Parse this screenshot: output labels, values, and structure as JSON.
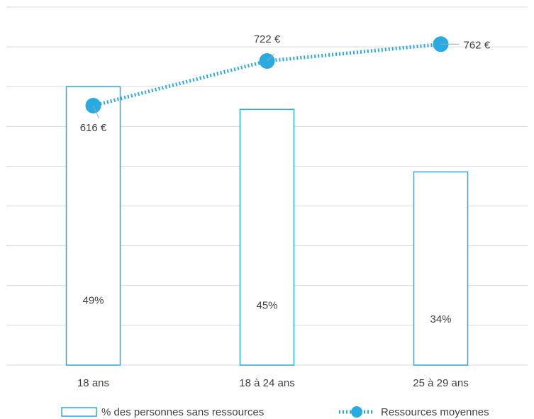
{
  "chart_data": {
    "type": "bar+line",
    "categories": [
      "18 ans",
      "18 à 24 ans",
      "25 à 29 ans"
    ],
    "series": [
      {
        "name": "% des personnes sans ressources",
        "type": "bar",
        "values": [
          49,
          45,
          34
        ],
        "labels": [
          "49%",
          "45%",
          "34%"
        ],
        "color": "#29abe2"
      },
      {
        "name": "Ressources moyennes",
        "type": "line",
        "style": "dotted",
        "marker": "circle",
        "values": [
          616,
          722,
          762
        ],
        "labels": [
          "616 €",
          "722 €",
          "762 €"
        ],
        "color": "#29abe2"
      }
    ],
    "title": "",
    "xlabel": "",
    "ylabel": "",
    "bar_axis_range": [
      0,
      63
    ],
    "line_axis_range": [
      0,
      850
    ],
    "grid": true,
    "legend_position": "bottom"
  }
}
